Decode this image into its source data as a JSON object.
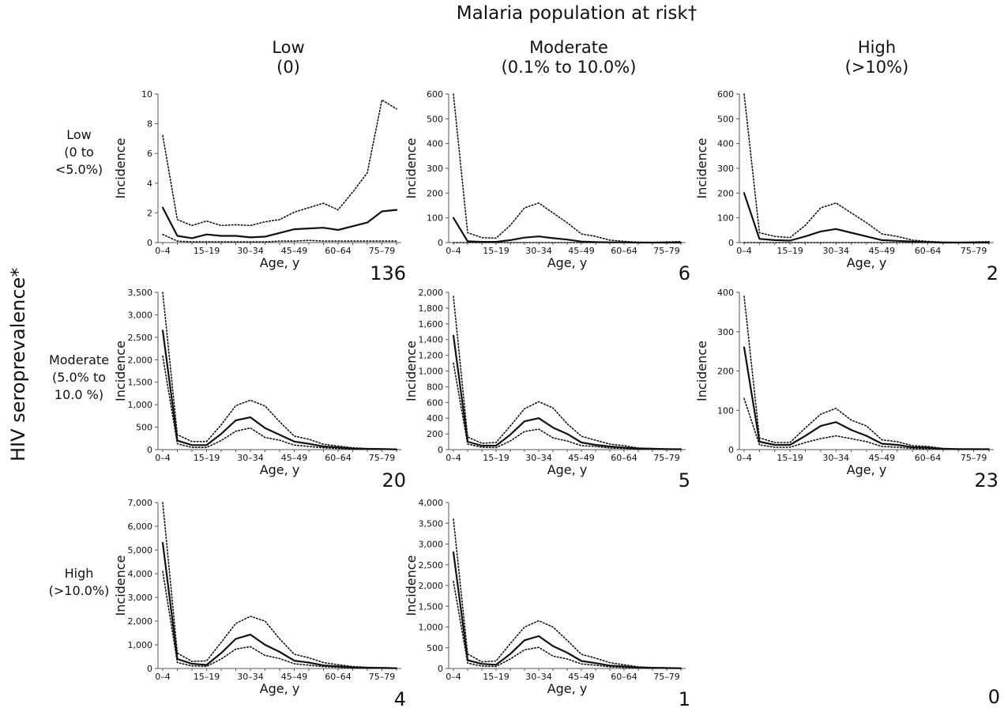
{
  "figure": {
    "title": "Malaria population at risk†",
    "column_headers": [
      {
        "line1": "Low",
        "line2": "(0)"
      },
      {
        "line1": "Moderate",
        "line2": "(0.1% to 10.0%)"
      },
      {
        "line1": "High",
        "line2": "(>10%)"
      }
    ],
    "y_axis_title": "HIV seroprevalence*",
    "row_headers": [
      {
        "line1": "Low",
        "line2": "(0 to",
        "line3": "<5.0%)"
      },
      {
        "line1": "Moderate",
        "line2": "(5.0% to",
        "line3": "10.0 %)"
      },
      {
        "line1": "High",
        "line2": "(>10.0%)",
        "line3": ""
      }
    ],
    "empty_panel_count": "0"
  },
  "chart_data": [
    {
      "type": "line",
      "row": 0,
      "col": 0,
      "count": "136",
      "xlabel": "Age, y",
      "ylabel": "Incidence",
      "xtick_labels": [
        "0–4",
        "15–19",
        "30–34",
        "45–49",
        "60–64",
        "75–79"
      ],
      "yticks": [
        "0",
        "2",
        "4",
        "6",
        "8",
        "10"
      ],
      "ylim": [
        0,
        10
      ],
      "series": [
        {
          "style": "solid",
          "values": [
            2.35,
            0.45,
            0.3,
            0.55,
            0.45,
            0.45,
            0.35,
            0.4,
            0.65,
            0.9,
            0.95,
            1.0,
            0.85,
            1.1,
            1.35,
            2.1,
            2.2
          ]
        },
        {
          "style": "dotted",
          "values": [
            7.2,
            1.55,
            1.15,
            1.45,
            1.15,
            1.2,
            1.15,
            1.4,
            1.55,
            2.05,
            2.35,
            2.65,
            2.2,
            3.4,
            4.7,
            9.6,
            9.0
          ]
        },
        {
          "style": "dotted",
          "values": [
            0.55,
            0.1,
            0.05,
            0.05,
            0.05,
            0.05,
            0.05,
            0.05,
            0.1,
            0.1,
            0.15,
            0.1,
            0.1,
            0.1,
            0.1,
            0.1,
            0.1
          ]
        }
      ]
    },
    {
      "type": "line",
      "row": 0,
      "col": 1,
      "count": "6",
      "xlabel": "Age, y",
      "ylabel": "Incidence",
      "xtick_labels": [
        "0–4",
        "15–19",
        "30–34",
        "45–49",
        "60–64",
        "75–79"
      ],
      "yticks": [
        "0",
        "100",
        "200",
        "300",
        "400",
        "500",
        "600"
      ],
      "ylim": [
        0,
        600
      ],
      "series": [
        {
          "style": "solid",
          "values": [
            100,
            5,
            3,
            3,
            10,
            20,
            25,
            18,
            12,
            4,
            2,
            1,
            1,
            0,
            0,
            0,
            0
          ]
        },
        {
          "style": "dotted",
          "values": [
            600,
            40,
            20,
            18,
            70,
            140,
            160,
            120,
            80,
            35,
            25,
            10,
            5,
            2,
            1,
            3,
            4
          ]
        },
        {
          "style": "dotted",
          "values": [
            0,
            0,
            0,
            0,
            0,
            0,
            0,
            0,
            0,
            0,
            0,
            0,
            0,
            0,
            0,
            0,
            0
          ]
        }
      ]
    },
    {
      "type": "line",
      "row": 0,
      "col": 2,
      "count": "2",
      "xlabel": "Age, y",
      "ylabel": "Incidence",
      "xtick_labels": [
        "0–4",
        "15–19",
        "30–34",
        "45–49",
        "60–64",
        "75–79"
      ],
      "yticks": [
        "0",
        "100",
        "200",
        "300",
        "400",
        "500",
        "600"
      ],
      "ylim": [
        0,
        600
      ],
      "series": [
        {
          "style": "solid",
          "values": [
            200,
            15,
            10,
            8,
            25,
            45,
            55,
            40,
            25,
            10,
            7,
            4,
            2,
            0,
            0,
            0,
            0
          ]
        },
        {
          "style": "dotted",
          "values": [
            600,
            40,
            25,
            20,
            70,
            140,
            160,
            120,
            80,
            35,
            25,
            10,
            5,
            2,
            1,
            3,
            4
          ]
        },
        {
          "style": "dotted",
          "values": [
            0,
            0,
            0,
            0,
            0,
            0,
            0,
            0,
            0,
            0,
            0,
            0,
            0,
            0,
            0,
            0,
            0
          ]
        }
      ]
    },
    {
      "type": "line",
      "row": 1,
      "col": 0,
      "count": "20",
      "xlabel": "Age, y",
      "ylabel": "Incidence",
      "xtick_labels": [
        "0–4",
        "15–19",
        "30–34",
        "45–49",
        "60–64",
        "75–79"
      ],
      "yticks": [
        "0",
        "500",
        "1,000",
        "1,500",
        "2,000",
        "2,500",
        "3,000",
        "3,500"
      ],
      "ylim": [
        0,
        3500
      ],
      "series": [
        {
          "style": "solid",
          "values": [
            2650,
            200,
            100,
            100,
            350,
            650,
            720,
            480,
            330,
            180,
            130,
            70,
            50,
            25,
            15,
            10,
            5
          ]
        },
        {
          "style": "dotted",
          "values": [
            3500,
            330,
            180,
            180,
            550,
            980,
            1100,
            970,
            620,
            300,
            230,
            120,
            80,
            40,
            25,
            20,
            10
          ]
        },
        {
          "style": "dotted",
          "values": [
            2080,
            130,
            50,
            50,
            200,
            410,
            480,
            270,
            210,
            100,
            70,
            40,
            25,
            10,
            5,
            5,
            3
          ]
        }
      ]
    },
    {
      "type": "line",
      "row": 1,
      "col": 1,
      "count": "5",
      "xlabel": "Age, y",
      "ylabel": "Incidence",
      "xtick_labels": [
        "0–4",
        "15–19",
        "30–34",
        "45–49",
        "60–64",
        "75–79"
      ],
      "yticks": [
        "0",
        "200",
        "400",
        "600",
        "800",
        "1,000",
        "1,200",
        "1,400",
        "1,600",
        "1,800",
        "2,000"
      ],
      "ylim": [
        0,
        2000
      ],
      "series": [
        {
          "style": "solid",
          "values": [
            1450,
            100,
            50,
            50,
            190,
            360,
            400,
            280,
            200,
            90,
            60,
            40,
            25,
            15,
            10,
            5,
            5
          ]
        },
        {
          "style": "dotted",
          "values": [
            1950,
            160,
            80,
            90,
            300,
            520,
            610,
            530,
            330,
            170,
            120,
            70,
            50,
            20,
            15,
            10,
            5
          ]
        },
        {
          "style": "dotted",
          "values": [
            1100,
            70,
            30,
            25,
            110,
            230,
            260,
            150,
            110,
            50,
            40,
            20,
            15,
            5,
            5,
            2,
            2
          ]
        }
      ]
    },
    {
      "type": "line",
      "row": 1,
      "col": 2,
      "count": "23",
      "xlabel": "Age, y",
      "ylabel": "Incidence",
      "xtick_labels": [
        "0–4",
        "15–19",
        "30–34",
        "45–49",
        "60–64",
        "75–79"
      ],
      "yticks": [
        "0",
        "100",
        "200",
        "300",
        "400"
      ],
      "ylim": [
        0,
        400
      ],
      "series": [
        {
          "style": "solid",
          "values": [
            260,
            20,
            12,
            12,
            35,
            60,
            70,
            50,
            35,
            15,
            12,
            6,
            5,
            2,
            1,
            1,
            1
          ]
        },
        {
          "style": "dotted",
          "values": [
            390,
            30,
            18,
            18,
            55,
            90,
            105,
            75,
            60,
            25,
            20,
            10,
            8,
            3,
            2,
            2,
            1
          ]
        },
        {
          "style": "dotted",
          "values": [
            130,
            12,
            6,
            6,
            18,
            28,
            35,
            28,
            20,
            8,
            6,
            3,
            2,
            1,
            1,
            1,
            1
          ]
        }
      ]
    },
    {
      "type": "line",
      "row": 2,
      "col": 0,
      "count": "4",
      "xlabel": "Age, y",
      "ylabel": "Incidence",
      "xtick_labels": [
        "0–4",
        "15–19",
        "30–34",
        "45–49",
        "60–64",
        "75–79"
      ],
      "yticks": [
        "0",
        "1,000",
        "2,000",
        "3,000",
        "4,000",
        "5,000",
        "6,000",
        "7,000"
      ],
      "ylim": [
        0,
        7000
      ],
      "series": [
        {
          "style": "solid",
          "values": [
            5300,
            400,
            200,
            150,
            650,
            1250,
            1430,
            1000,
            700,
            330,
            250,
            130,
            90,
            50,
            30,
            20,
            10
          ]
        },
        {
          "style": "dotted",
          "values": [
            7000,
            650,
            300,
            320,
            1100,
            1900,
            2200,
            2000,
            1250,
            600,
            450,
            250,
            160,
            80,
            50,
            40,
            20
          ]
        },
        {
          "style": "dotted",
          "values": [
            4100,
            250,
            110,
            90,
            400,
            820,
            920,
            550,
            420,
            200,
            140,
            80,
            50,
            20,
            10,
            10,
            5
          ]
        }
      ]
    },
    {
      "type": "line",
      "row": 2,
      "col": 1,
      "count": "1",
      "xlabel": "Age, y",
      "ylabel": "Incidence",
      "xtick_labels": [
        "0–4",
        "15–19",
        "30–34",
        "45–49",
        "60–64",
        "75–79"
      ],
      "yticks": [
        "0",
        "500",
        "1,000",
        "1,500",
        "2,000",
        "2,500",
        "3,000",
        "3,500",
        "4,000"
      ],
      "ylim": [
        0,
        4000
      ],
      "series": [
        {
          "style": "solid",
          "values": [
            2800,
            200,
            110,
            90,
            350,
            680,
            780,
            540,
            380,
            180,
            130,
            70,
            50,
            25,
            15,
            10,
            5
          ]
        },
        {
          "style": "dotted",
          "values": [
            3600,
            350,
            160,
            180,
            600,
            1000,
            1150,
            1000,
            680,
            340,
            250,
            140,
            90,
            40,
            25,
            20,
            10
          ]
        },
        {
          "style": "dotted",
          "values": [
            2100,
            130,
            60,
            50,
            230,
            450,
            510,
            300,
            230,
            110,
            80,
            40,
            25,
            10,
            5,
            5,
            3
          ]
        }
      ]
    }
  ]
}
